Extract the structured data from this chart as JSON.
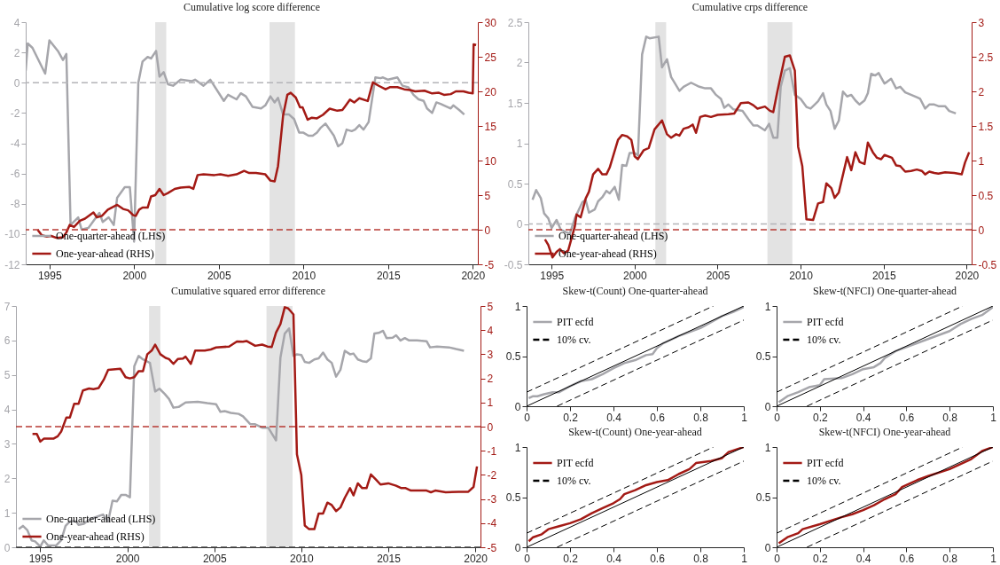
{
  "chart_data": [
    {
      "type": "line",
      "title": "Cumulative log score difference",
      "xlim": [
        1993.6,
        2020.3
      ],
      "xticks": [
        1995,
        2000,
        2005,
        2010,
        2015,
        2020
      ],
      "ylim": [
        -12,
        4
      ],
      "yticks": [
        -12,
        -10,
        -8,
        -6,
        -4,
        -2,
        0,
        2,
        4
      ],
      "y2lim": [
        -5,
        30
      ],
      "y2ticks": [
        -5,
        0,
        5,
        10,
        15,
        20,
        25,
        30
      ],
      "legend": "bottom left",
      "bands": [
        {
          "axis": "x",
          "from": 2001.25,
          "to": 2001.9,
          "color": "#e3e3e3"
        },
        {
          "axis": "x",
          "from": 2008.0,
          "to": 2009.5,
          "color": "#e3e3e3"
        }
      ],
      "ref_lines": [
        {
          "axis": "y",
          "value": 0,
          "color": "#b4b4b8",
          "line_style": "dashed"
        },
        {
          "axis": "y2",
          "value": 0,
          "color": "#b83a33",
          "line_style": "dashed"
        }
      ],
      "series": [
        {
          "name": "One-quarter-ahead (LHS)",
          "color": "#a6a6ab",
          "x": [
            1993.6,
            1993.72,
            1994.0,
            1994.75,
            1995.0,
            1995.5,
            1995.8,
            1996.0,
            1996.25,
            1996.7,
            1996.9,
            1997.3,
            1997.95,
            1998.15,
            1998.5,
            1998.8,
            1999.0,
            1999.45,
            1999.75,
            2000.0,
            2000.25,
            2000.5,
            2000.8,
            2001.0,
            2001.3,
            2001.5,
            2001.75,
            2002.0,
            2002.3,
            2002.75,
            2003.4,
            2003.6,
            2004.1,
            2004.5,
            2005.3,
            2005.55,
            2006.05,
            2006.3,
            2006.6,
            2007.0,
            2007.5,
            2007.75,
            2008.05,
            2008.3,
            2008.5,
            2008.8,
            2009.15,
            2009.45,
            2009.75,
            2010.0,
            2010.3,
            2010.55,
            2010.8,
            2011.0,
            2011.3,
            2011.8,
            2012.05,
            2012.3,
            2012.55,
            2012.85,
            2013.05,
            2013.3,
            2013.55,
            2013.85,
            2014.25,
            2014.55,
            2014.7,
            2015.0,
            2015.55,
            2015.85,
            2016.2,
            2016.5,
            2016.8,
            2017.1,
            2017.3,
            2017.6,
            2017.85,
            2018.1,
            2018.5,
            2018.7,
            2018.85,
            2019.2,
            2019.5
          ],
          "values": [
            0.8,
            2.6,
            2.3,
            0.6,
            2.8,
            2.1,
            1.5,
            1.9,
            -9.4,
            -8.9,
            -9.7,
            -9.6,
            -8.6,
            -9.2,
            -8.9,
            -9.4,
            -7.6,
            -6.9,
            -6.9,
            -10.5,
            0,
            1.4,
            1.7,
            1.6,
            2.1,
            0.4,
            0.7,
            -0.1,
            -0.2,
            0.2,
            0.1,
            0.2,
            -0.2,
            0.2,
            -1.2,
            -0.8,
            -1.1,
            -0.7,
            -0.9,
            -1.6,
            -1.7,
            -1.5,
            -0.9,
            -1.3,
            -1.0,
            -2.1,
            -2.1,
            -2.4,
            -3.3,
            -3.3,
            -3.5,
            -3.5,
            -3.3,
            -3.0,
            -2.7,
            -3.5,
            -4.2,
            -4.0,
            -3.1,
            -3.2,
            -3.1,
            -2.8,
            -3.1,
            -2.6,
            0.35,
            0.3,
            0.35,
            0.2,
            0.35,
            -0.2,
            -0.3,
            -0.8,
            -1.1,
            -1.2,
            -1.7,
            -2.0,
            -1.3,
            -1.4,
            -1.6,
            -1.7,
            -1.5,
            -1.8,
            -2.1
          ]
        },
        {
          "name": "One-year-ahead (RHS)",
          "color": "#a31a15",
          "axis": "y2",
          "x": [
            1994.3,
            1994.55,
            1994.85,
            1995.1,
            1995.45,
            1995.8,
            1996.0,
            1996.2,
            1996.45,
            1996.8,
            1997.1,
            1997.6,
            1997.8,
            1998.1,
            1998.45,
            1999.0,
            1999.35,
            1999.65,
            1999.95,
            2000.1,
            2000.3,
            2000.5,
            2000.8,
            2001.0,
            2001.25,
            2001.5,
            2001.75,
            2002.0,
            2002.4,
            2002.75,
            2003.25,
            2003.5,
            2003.75,
            2004.1,
            2004.75,
            2005.1,
            2005.55,
            2006.05,
            2006.5,
            2006.8,
            2007.2,
            2007.75,
            2008.05,
            2008.3,
            2008.5,
            2008.8,
            2009.05,
            2009.25,
            2009.55,
            2009.8,
            2009.95,
            2010.25,
            2010.5,
            2010.8,
            2011.15,
            2011.55,
            2012.0,
            2012.3,
            2012.45,
            2012.75,
            2013.0,
            2013.3,
            2013.8,
            2014.1,
            2014.45,
            2014.85,
            2015.1,
            2015.55,
            2015.95,
            2016.3,
            2016.6,
            2017.15,
            2017.6,
            2018.0,
            2018.3,
            2018.7,
            2019.0,
            2019.45,
            2019.75,
            2020.0,
            2020.05,
            2020.2
          ],
          "values": [
            0,
            -0.8,
            -1.0,
            -0.9,
            -1.2,
            -1.1,
            -0.4,
            0.7,
            0.4,
            1.3,
            1.6,
            2.5,
            1.8,
            2.0,
            2.9,
            3.6,
            3.0,
            2.8,
            2.1,
            2.0,
            2.9,
            3.2,
            3.2,
            4.8,
            5.0,
            5.9,
            5.0,
            5.3,
            5.9,
            6.1,
            6.2,
            5.9,
            7.9,
            8.0,
            7.9,
            8.0,
            7.8,
            8.0,
            8.5,
            8.2,
            8.2,
            8.0,
            7.1,
            7.0,
            9.2,
            16.5,
            19.5,
            19.8,
            19.1,
            17.7,
            17.7,
            15.9,
            16.2,
            16.1,
            16.6,
            17.5,
            17.2,
            17.3,
            17.8,
            18.8,
            18.4,
            19.0,
            18.6,
            21.3,
            20.8,
            20.3,
            20.6,
            20.6,
            20.3,
            20.2,
            20.0,
            20.1,
            19.7,
            19.8,
            19.5,
            19.6,
            20.0,
            20.0,
            19.8,
            19.7,
            26.8,
            26.7
          ]
        }
      ]
    },
    {
      "type": "line",
      "title": "Cumulative crps difference",
      "xlim": [
        1993.6,
        2020.3
      ],
      "xticks": [
        1995,
        2000,
        2005,
        2010,
        2015,
        2020
      ],
      "ylim": [
        -0.5,
        2.5
      ],
      "yticks": [
        -0.5,
        0,
        0.5,
        1,
        1.5,
        2,
        2.5
      ],
      "y2lim": [
        -0.5,
        3
      ],
      "y2ticks": [
        -0.5,
        0,
        0.5,
        1,
        1.5,
        2,
        2.5,
        3
      ],
      "legend": "bottom left",
      "bands": [
        {
          "axis": "x",
          "from": 2001.25,
          "to": 2001.9,
          "color": "#e3e3e3"
        },
        {
          "axis": "x",
          "from": 2008.0,
          "to": 2009.5,
          "color": "#e3e3e3"
        }
      ],
      "ref_lines": [
        {
          "axis": "y",
          "value": 0,
          "color": "#b4b4b8",
          "line_style": "dashed"
        },
        {
          "axis": "y2",
          "value": 0,
          "color": "#b83a33",
          "line_style": "dashed"
        }
      ],
      "series": [
        {
          "name": "One-quarter-ahead (LHS)",
          "color": "#a6a6ab",
          "x": [
            1993.85,
            1994.07,
            1994.35,
            1994.55,
            1994.8,
            1995.0,
            1995.3,
            1995.55,
            1995.85,
            1996.1,
            1996.4,
            1996.85,
            1997.05,
            1997.25,
            1997.6,
            1997.8,
            1998.05,
            1998.3,
            1998.5,
            1998.8,
            1999.05,
            1999.25,
            1999.5,
            1999.7,
            2000.0,
            2000.2,
            2000.45,
            2000.7,
            2000.9,
            2001.45,
            2001.65,
            2001.95,
            2002.2,
            2002.7,
            2002.95,
            2003.4,
            2003.9,
            2004.25,
            2004.6,
            2004.9,
            2005.2,
            2005.4,
            2005.65,
            2005.95,
            2006.5,
            2006.85,
            2007.15,
            2007.4,
            2007.85,
            2008.1,
            2008.35,
            2008.6,
            2008.8,
            2009.05,
            2009.35,
            2009.65,
            2010.0,
            2010.35,
            2010.6,
            2010.85,
            2011.05,
            2011.35,
            2011.55,
            2011.8,
            2012.05,
            2012.3,
            2012.55,
            2012.8,
            2013.05,
            2013.3,
            2013.55,
            2013.85,
            2014.05,
            2014.25,
            2014.5,
            2014.7,
            2015.05,
            2015.2,
            2015.45,
            2015.75,
            2016.0,
            2016.3,
            2016.65,
            2017.0,
            2017.2,
            2017.5,
            2017.75,
            2018.05,
            2018.3,
            2018.7,
            2018.95,
            2019.35
          ],
          "values": [
            0.3,
            0.42,
            0.32,
            0.13,
            0.07,
            -0.05,
            0.05,
            -0.07,
            -0.1,
            -0.12,
            0.07,
            0.27,
            0.3,
            0.14,
            0.18,
            0.28,
            0.33,
            0.41,
            0.38,
            0.46,
            0.3,
            0.73,
            0.72,
            0.88,
            0.88,
            0.85,
            2.1,
            2.32,
            2.3,
            2.32,
            1.94,
            2.04,
            1.82,
            1.65,
            1.7,
            1.75,
            1.7,
            1.68,
            1.68,
            1.6,
            1.55,
            1.44,
            1.48,
            1.42,
            1.4,
            1.3,
            1.22,
            1.22,
            1.16,
            1.24,
            1.07,
            1.07,
            1.7,
            1.9,
            1.93,
            1.6,
            1.55,
            1.45,
            1.43,
            1.48,
            1.52,
            1.62,
            1.48,
            1.4,
            1.18,
            1.28,
            1.64,
            1.58,
            1.6,
            1.53,
            1.48,
            1.53,
            1.62,
            1.86,
            1.84,
            1.87,
            1.74,
            1.76,
            1.8,
            1.68,
            1.7,
            1.63,
            1.6,
            1.57,
            1.55,
            1.43,
            1.48,
            1.48,
            1.46,
            1.46,
            1.4,
            1.37
          ]
        },
        {
          "name": "One-year-ahead (RHS)",
          "color": "#a31a15",
          "axis": "y2",
          "x": [
            1994.6,
            1994.8,
            1995.05,
            1995.3,
            1995.5,
            1995.75,
            1996.0,
            1996.4,
            1996.5,
            1996.75,
            1997.05,
            1997.25,
            1997.5,
            1997.8,
            1998.05,
            1998.3,
            1998.5,
            1999.0,
            1999.25,
            1999.55,
            1999.8,
            2000.0,
            2000.2,
            2000.55,
            2000.85,
            2001.2,
            2001.65,
            2001.95,
            2002.2,
            2002.5,
            2002.7,
            2002.95,
            2003.25,
            2003.5,
            2003.7,
            2003.95,
            2004.25,
            2004.6,
            2005.0,
            2005.65,
            2006.0,
            2006.4,
            2006.85,
            2007.15,
            2007.4,
            2007.85,
            2008.15,
            2008.35,
            2008.6,
            2009.05,
            2009.35,
            2009.65,
            2009.85,
            2010.1,
            2010.35,
            2010.75,
            2011.05,
            2011.35,
            2011.55,
            2011.85,
            2012.05,
            2012.3,
            2012.8,
            2013.05,
            2013.3,
            2013.55,
            2013.85,
            2014.05,
            2014.35,
            2014.6,
            2014.85,
            2015.05,
            2015.5,
            2015.75,
            2016.0,
            2016.3,
            2016.65,
            2017.0,
            2017.3,
            2017.5,
            2017.75,
            2018.05,
            2018.3,
            2018.7,
            2019.25,
            2019.7,
            2019.9,
            2020.15
          ],
          "values": [
            -0.14,
            -0.22,
            -0.4,
            -0.32,
            -0.28,
            -0.34,
            -0.3,
            0.05,
            0.22,
            0.18,
            0.45,
            0.55,
            0.8,
            0.88,
            0.8,
            0.8,
            0.9,
            1.3,
            1.37,
            1.35,
            1.3,
            1.06,
            1.02,
            1.15,
            1.18,
            1.45,
            1.58,
            1.38,
            1.33,
            1.38,
            1.36,
            1.46,
            1.48,
            1.52,
            1.4,
            1.63,
            1.65,
            1.63,
            1.66,
            1.67,
            1.68,
            1.83,
            1.84,
            1.8,
            1.75,
            1.78,
            1.72,
            1.7,
            2.0,
            2.5,
            2.52,
            2.3,
            1.2,
            0.92,
            0.15,
            0.14,
            0.38,
            0.4,
            0.67,
            0.6,
            0.46,
            0.54,
            1.05,
            0.86,
            1.12,
            0.98,
            0.95,
            1.26,
            1.12,
            1.04,
            1.02,
            1.08,
            1.04,
            0.93,
            0.92,
            0.84,
            0.85,
            0.87,
            0.85,
            0.8,
            0.84,
            0.82,
            0.81,
            0.83,
            0.82,
            0.8,
            0.97,
            1.12
          ]
        }
      ]
    },
    {
      "type": "line",
      "title": "Cumulative squared error difference",
      "xlim": [
        1993.6,
        2020.3
      ],
      "xticks": [
        1995,
        2000,
        2005,
        2010,
        2015,
        2020
      ],
      "ylim": [
        0,
        7
      ],
      "yticks": [
        0,
        1,
        2,
        3,
        4,
        5,
        6,
        7
      ],
      "y2lim": [
        -5,
        5
      ],
      "y2ticks": [
        -5,
        -4,
        -3,
        -2,
        -1,
        0,
        1,
        2,
        3,
        4,
        5
      ],
      "legend": "bottom left",
      "bands": [
        {
          "axis": "x",
          "from": 2001.25,
          "to": 2001.9,
          "color": "#e3e3e3"
        },
        {
          "axis": "x",
          "from": 2008.0,
          "to": 2009.5,
          "color": "#e3e3e3"
        }
      ],
      "ref_lines": [
        {
          "axis": "y",
          "value": 0,
          "color": "#404040",
          "line_style": "dashed"
        },
        {
          "axis": "y2",
          "value": 0,
          "color": "#b83a33",
          "line_style": "dashed"
        }
      ],
      "series": [
        {
          "name": "One-quarter-ahead (LHS)",
          "color": "#a6a6ab",
          "x": [
            1993.76,
            1994.0,
            1994.25,
            1994.5,
            1994.7,
            1995.0,
            1995.2,
            1995.45,
            1995.9,
            1996.2,
            1996.45,
            1996.7,
            1997.05,
            1997.2,
            1997.5,
            1997.8,
            1998.05,
            1998.6,
            1998.9,
            1999.15,
            1999.4,
            1999.65,
            1999.9,
            2000.15,
            2000.4,
            2000.65,
            2000.9,
            2001.3,
            2001.6,
            2001.85,
            2002.15,
            2002.4,
            2002.65,
            2002.95,
            2003.35,
            2004.05,
            2004.6,
            2005.1,
            2005.35,
            2005.6,
            2005.95,
            2006.4,
            2006.65,
            2007.05,
            2007.35,
            2007.75,
            2008.1,
            2008.55,
            2008.8,
            2009.05,
            2009.3,
            2009.55,
            2009.75,
            2010.0,
            2010.2,
            2010.45,
            2010.75,
            2011.0,
            2011.25,
            2011.5,
            2011.75,
            2012.0,
            2012.25,
            2012.5,
            2012.8,
            2013.0,
            2013.25,
            2013.5,
            2013.75,
            2014.0,
            2014.2,
            2014.45,
            2014.7,
            2014.9,
            2015.25,
            2015.45,
            2015.7,
            2015.95,
            2016.2,
            2016.65,
            2017.2,
            2017.4,
            2017.8,
            2018.5,
            2018.9,
            2019.35
          ],
          "values": [
            0.53,
            0.62,
            0.5,
            0.2,
            0.17,
            0.02,
            0.2,
            0.05,
            0.05,
            0.2,
            0.62,
            0.75,
            0.75,
            0.65,
            0.68,
            0.8,
            0.85,
            0.95,
            0.75,
            1.35,
            1.33,
            1.52,
            1.52,
            1.45,
            5.25,
            5.55,
            5.45,
            5.35,
            4.52,
            4.6,
            4.45,
            4.3,
            4.05,
            4.07,
            4.2,
            4.22,
            4.18,
            4.15,
            3.93,
            3.95,
            3.9,
            3.87,
            3.8,
            3.58,
            3.57,
            3.47,
            3.47,
            3.1,
            5.5,
            6.2,
            6.35,
            5.55,
            5.6,
            5.58,
            5.38,
            5.35,
            5.45,
            5.48,
            5.65,
            5.45,
            5.35,
            4.95,
            5.15,
            5.7,
            5.6,
            5.62,
            5.45,
            5.4,
            5.38,
            5.48,
            6.2,
            6.22,
            6.28,
            6.07,
            6.08,
            6.15,
            6.0,
            6.07,
            6.0,
            6.0,
            5.98,
            5.8,
            5.82,
            5.8,
            5.75,
            5.7
          ]
        },
        {
          "name": "One-year-ahead (RHS)",
          "color": "#a31a15",
          "axis": "y2",
          "x": [
            1994.55,
            1994.8,
            1995.0,
            1995.2,
            1995.75,
            1996.0,
            1996.2,
            1996.5,
            1996.7,
            1996.95,
            1997.2,
            1997.45,
            1997.8,
            1998.05,
            1998.35,
            1998.65,
            1998.9,
            1999.6,
            1999.9,
            2000.15,
            2000.4,
            2000.65,
            2000.9,
            2001.15,
            2001.4,
            2001.6,
            2001.9,
            2002.2,
            2002.4,
            2002.65,
            2002.9,
            2003.2,
            2003.35,
            2003.65,
            2003.9,
            2004.45,
            2004.8,
            2005.1,
            2005.85,
            2006.3,
            2006.65,
            2006.85,
            2007.35,
            2007.75,
            2008.05,
            2008.3,
            2008.55,
            2008.8,
            2009.05,
            2009.25,
            2009.55,
            2009.75,
            2010.0,
            2010.2,
            2010.45,
            2010.75,
            2011.0,
            2011.25,
            2011.5,
            2011.75,
            2012.0,
            2012.25,
            2012.5,
            2012.8,
            2013.0,
            2013.25,
            2013.5,
            2013.75,
            2014.0,
            2014.3,
            2014.55,
            2015.0,
            2015.45,
            2015.75,
            2016.0,
            2016.3,
            2017.2,
            2017.45,
            2017.7,
            2018.3,
            2019.05,
            2019.6,
            2019.9,
            2020.1
          ],
          "values": [
            -0.3,
            -0.3,
            -0.62,
            -0.5,
            -0.5,
            -0.4,
            -0.2,
            0.38,
            0.38,
            0.95,
            0.95,
            1.5,
            1.58,
            1.55,
            1.6,
            1.95,
            2.35,
            2.4,
            2.05,
            2.0,
            2.05,
            2.3,
            2.3,
            3.0,
            3.15,
            3.4,
            3.0,
            2.85,
            2.8,
            2.6,
            2.8,
            2.82,
            2.9,
            2.6,
            3.15,
            3.15,
            3.2,
            3.28,
            3.32,
            3.53,
            3.52,
            3.55,
            3.35,
            3.4,
            3.32,
            3.3,
            3.9,
            4.25,
            4.95,
            4.9,
            4.65,
            -1.15,
            -2.0,
            -4.1,
            -4.25,
            -4.25,
            -3.6,
            -3.6,
            -3.15,
            -3.25,
            -3.5,
            -3.35,
            -2.95,
            -2.55,
            -2.85,
            -2.35,
            -2.55,
            -2.55,
            -1.98,
            -2.2,
            -2.4,
            -2.35,
            -2.45,
            -2.55,
            -2.55,
            -2.65,
            -2.65,
            -2.72,
            -2.65,
            -2.72,
            -2.7,
            -2.7,
            -2.5,
            -1.65
          ]
        }
      ]
    },
    {
      "type": "line",
      "title": "Skew-t(Count) One-quarter-ahead",
      "xlim": [
        0,
        1
      ],
      "xticks": [
        0,
        0.2,
        0.4,
        0.6,
        0.8,
        1
      ],
      "ylim": [
        0,
        1
      ],
      "yticks": [
        0,
        0.5,
        1
      ],
      "legend": "top left",
      "series": [
        {
          "name": "PIT ecfd",
          "color": "#a6a6ab",
          "x": [
            0.01,
            0.03,
            0.05,
            0.08,
            0.12,
            0.15,
            0.2,
            0.25,
            0.3,
            0.35,
            0.4,
            0.45,
            0.5,
            0.55,
            0.58,
            0.6,
            0.63,
            0.7,
            0.8,
            0.9,
            0.95,
            1
          ],
          "values": [
            0.08,
            0.1,
            0.1,
            0.12,
            0.14,
            0.14,
            0.2,
            0.25,
            0.27,
            0.32,
            0.38,
            0.43,
            0.46,
            0.51,
            0.52,
            0.58,
            0.63,
            0.7,
            0.78,
            0.9,
            0.94,
            0.99
          ]
        },
        {
          "name": "10% cv.",
          "color": "#000000",
          "line_style": "dashed",
          "x": [
            0,
            0.86
          ],
          "values": [
            0.14,
            1
          ]
        },
        {
          "color": "#000000",
          "line_style": "dashed",
          "x": [
            0.14,
            1
          ],
          "values": [
            0,
            0.86
          ]
        },
        {
          "color": "#000000",
          "x": [
            0,
            1
          ],
          "values": [
            0,
            1
          ]
        }
      ]
    },
    {
      "type": "line",
      "title": "Skew-t(NFCI) One-quarter-ahead",
      "xlim": [
        0,
        1
      ],
      "xticks": [
        0,
        0.2,
        0.4,
        0.6,
        0.8,
        1
      ],
      "ylim": [
        0,
        1
      ],
      "yticks": [
        0,
        0.5,
        1
      ],
      "legend": "top left",
      "series": [
        {
          "name": "PIT ecfd",
          "color": "#a6a6ab",
          "x": [
            0.01,
            0.05,
            0.1,
            0.15,
            0.2,
            0.22,
            0.3,
            0.35,
            0.4,
            0.45,
            0.48,
            0.5,
            0.55,
            0.6,
            0.7,
            0.8,
            0.85,
            0.9,
            0.95,
            1
          ],
          "values": [
            0.04,
            0.1,
            0.14,
            0.19,
            0.21,
            0.27,
            0.28,
            0.32,
            0.37,
            0.39,
            0.43,
            0.48,
            0.55,
            0.59,
            0.67,
            0.75,
            0.82,
            0.87,
            0.91,
            0.99
          ]
        },
        {
          "name": "10% cv.",
          "color": "#000000",
          "line_style": "dashed",
          "x": [
            0,
            0.86
          ],
          "values": [
            0.14,
            1
          ]
        },
        {
          "color": "#000000",
          "line_style": "dashed",
          "x": [
            0.14,
            1
          ],
          "values": [
            0,
            0.86
          ]
        },
        {
          "color": "#000000",
          "x": [
            0,
            1
          ],
          "values": [
            0,
            1
          ]
        }
      ]
    },
    {
      "type": "line",
      "title": "Skew-t(Count) One-year-ahead",
      "xlim": [
        0,
        1
      ],
      "xticks": [
        0,
        0.2,
        0.4,
        0.6,
        0.8,
        1
      ],
      "ylim": [
        0,
        1
      ],
      "yticks": [
        0,
        0.5,
        1
      ],
      "legend": "top left",
      "series": [
        {
          "name": "PIT ecfd",
          "color": "#a31a15",
          "x": [
            0.01,
            0.03,
            0.07,
            0.1,
            0.15,
            0.2,
            0.25,
            0.3,
            0.35,
            0.4,
            0.43,
            0.45,
            0.5,
            0.55,
            0.6,
            0.65,
            0.7,
            0.75,
            0.78,
            0.85,
            0.9,
            0.93,
            1
          ],
          "values": [
            0.06,
            0.1,
            0.13,
            0.18,
            0.21,
            0.24,
            0.28,
            0.34,
            0.39,
            0.44,
            0.48,
            0.53,
            0.57,
            0.62,
            0.65,
            0.67,
            0.73,
            0.78,
            0.84,
            0.86,
            0.89,
            0.95,
            1
          ]
        },
        {
          "name": "10% cv.",
          "color": "#000000",
          "line_style": "dashed",
          "x": [
            0,
            0.86
          ],
          "values": [
            0.14,
            1
          ]
        },
        {
          "color": "#000000",
          "line_style": "dashed",
          "x": [
            0.14,
            1
          ],
          "values": [
            0,
            0.86
          ]
        },
        {
          "color": "#000000",
          "x": [
            0,
            1
          ],
          "values": [
            0,
            1
          ]
        }
      ]
    },
    {
      "type": "line",
      "title": "Skew-t(NFCI) One-year-ahead",
      "xlim": [
        0,
        1
      ],
      "xticks": [
        0,
        0.2,
        0.4,
        0.6,
        0.8,
        1
      ],
      "ylim": [
        0,
        1
      ],
      "yticks": [
        0,
        0.5,
        1
      ],
      "legend": "top left",
      "series": [
        {
          "name": "PIT ecfd",
          "color": "#a31a15",
          "x": [
            0.01,
            0.05,
            0.1,
            0.12,
            0.2,
            0.3,
            0.35,
            0.4,
            0.45,
            0.5,
            0.55,
            0.58,
            0.6,
            0.65,
            0.7,
            0.8,
            0.9,
            0.95,
            1
          ],
          "values": [
            0.04,
            0.1,
            0.14,
            0.18,
            0.23,
            0.3,
            0.33,
            0.37,
            0.42,
            0.48,
            0.53,
            0.6,
            0.62,
            0.67,
            0.71,
            0.78,
            0.88,
            0.96,
            1
          ]
        },
        {
          "name": "10% cv.",
          "color": "#000000",
          "line_style": "dashed",
          "x": [
            0,
            0.86
          ],
          "values": [
            0.14,
            1
          ]
        },
        {
          "color": "#000000",
          "line_style": "dashed",
          "x": [
            0.14,
            1
          ],
          "values": [
            0,
            0.86
          ]
        },
        {
          "color": "#000000",
          "x": [
            0,
            1
          ],
          "values": [
            0,
            1
          ]
        }
      ]
    }
  ]
}
